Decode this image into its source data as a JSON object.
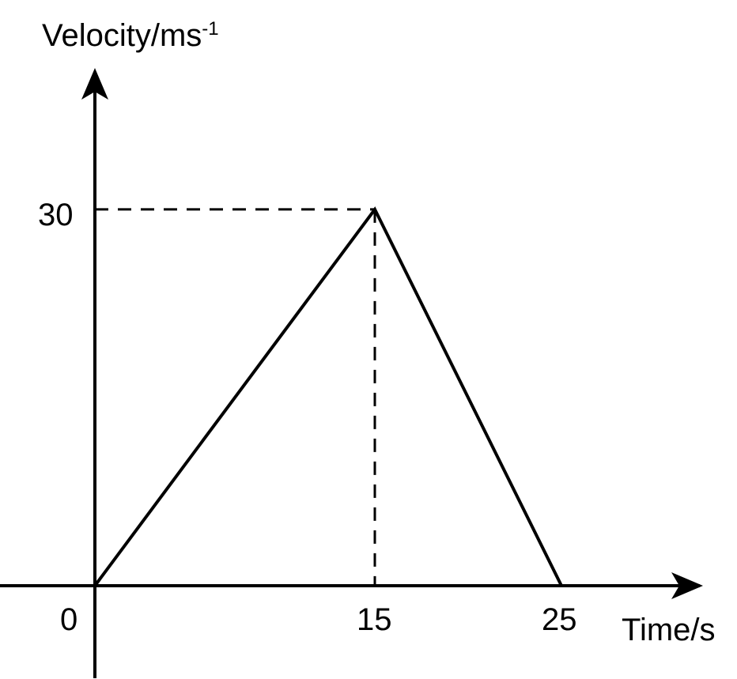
{
  "chart_data": {
    "type": "line",
    "title": "",
    "xlabel": "Time/s",
    "ylabel": {
      "base": "Velocity/ms",
      "superscript": "-1"
    },
    "origin_label": "0",
    "x_ticks": [
      "15",
      "25"
    ],
    "y_ticks": [
      "30"
    ],
    "xlim": [
      0,
      30
    ],
    "ylim": [
      0,
      40
    ],
    "series": [
      {
        "x": [
          0,
          15,
          25
        ],
        "y": [
          0,
          30,
          0
        ]
      }
    ],
    "guides": [
      {
        "type": "dashed",
        "x": 15,
        "y": 30
      }
    ],
    "colors": {
      "line": "#000000",
      "axis": "#000000",
      "background": "#ffffff"
    }
  }
}
